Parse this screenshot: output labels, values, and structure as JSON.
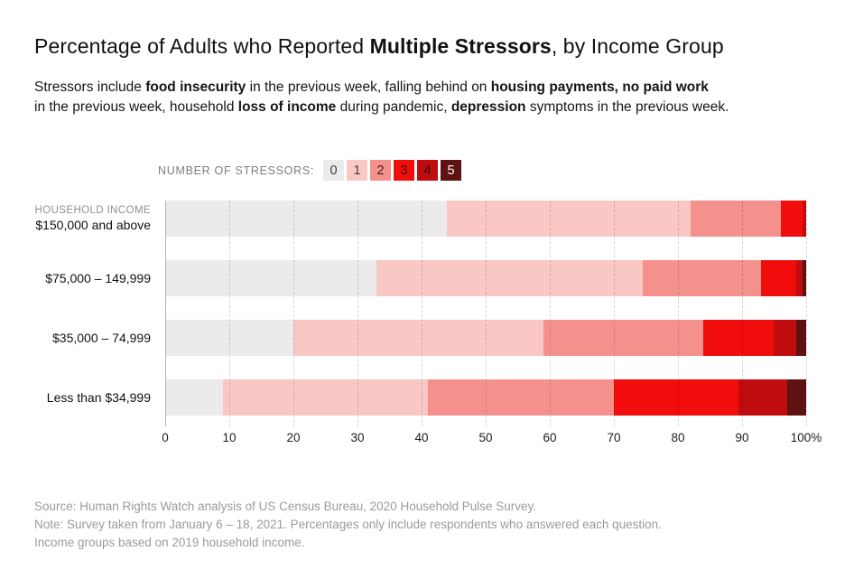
{
  "title": {
    "segments": [
      {
        "text": "Percentage of Adults who Reported ",
        "bold": false
      },
      {
        "text": "Multiple Stressors",
        "bold": true
      },
      {
        "text": ", by Income Group",
        "bold": false
      }
    ]
  },
  "subtitle": {
    "lines": [
      [
        {
          "text": "Stressors include ",
          "bold": false
        },
        {
          "text": "food insecurity",
          "bold": true
        },
        {
          "text": " in the previous week, falling behind on ",
          "bold": false
        },
        {
          "text": "housing payments,",
          "bold": true
        },
        {
          "text": " ",
          "bold": false
        },
        {
          "text": "no paid work",
          "bold": true
        }
      ],
      [
        {
          "text": "in the previous week, household ",
          "bold": false
        },
        {
          "text": "loss of income",
          "bold": true
        },
        {
          "text": " during pandemic, ",
          "bold": false
        },
        {
          "text": "depression",
          "bold": true
        },
        {
          "text": " symptoms in the previous week.",
          "bold": false
        }
      ]
    ]
  },
  "legend": {
    "label": "NUMBER OF STRESSORS:",
    "items": [
      {
        "value": "0",
        "color": "#ebebeb",
        "text_color": "#3d3d3d"
      },
      {
        "value": "1",
        "color": "#fac8c4",
        "text_color": "#3d3d3d"
      },
      {
        "value": "2",
        "color": "#f5918c",
        "text_color": "#42211f"
      },
      {
        "value": "3",
        "color": "#f20d0d",
        "text_color": "#4a0b0b"
      },
      {
        "value": "4",
        "color": "#c00c0f",
        "text_color": "#2b0606"
      },
      {
        "value": "5",
        "color": "#5e1211",
        "text_color": "#ffffff"
      }
    ]
  },
  "chart_data": {
    "type": "bar",
    "stacked": true,
    "orientation": "horizontal",
    "unit": "%",
    "title": "Percentage of Adults who Reported Multiple Stressors, by Income Group",
    "legend_title": "NUMBER OF STRESSORS:",
    "categories": [
      {
        "kicker": "HOUSEHOLD INCOME",
        "label": "$150,000 and above"
      },
      {
        "kicker": "",
        "label": "$75,000 – 149,999"
      },
      {
        "kicker": "",
        "label": "$35,000 – 74,999"
      },
      {
        "kicker": "",
        "label": "Less than $34,999"
      }
    ],
    "series": [
      {
        "name": "0",
        "color": "#ebebeb",
        "values": [
          44,
          33,
          20,
          9
        ]
      },
      {
        "name": "1",
        "color": "#fac8c4",
        "values": [
          38,
          41.5,
          39,
          32
        ]
      },
      {
        "name": "2",
        "color": "#f5918c",
        "values": [
          14,
          18.5,
          25,
          29
        ]
      },
      {
        "name": "3",
        "color": "#f20d0d",
        "values": [
          3.5,
          5.5,
          11,
          19.5
        ]
      },
      {
        "name": "4",
        "color": "#c00c0f",
        "values": [
          0.5,
          1,
          3.5,
          7.5
        ]
      },
      {
        "name": "5",
        "color": "#5e1211",
        "values": [
          0,
          0.5,
          1.5,
          3
        ]
      }
    ],
    "xlim": [
      0,
      100
    ],
    "xtick_values": [
      0,
      10,
      20,
      30,
      40,
      50,
      60,
      70,
      80,
      90,
      100
    ],
    "xtick_labels": [
      "0",
      "10",
      "20",
      "30",
      "40",
      "50",
      "60",
      "70",
      "80",
      "90",
      "100%"
    ],
    "grid": true,
    "legend_position": "top"
  },
  "footer": {
    "lines": [
      "Source: Human Rights Watch analysis of US Census Bureau, 2020 Household Pulse Survey.",
      "Note: Survey taken from January 6 – 18, 2021. Percentages only include respondents who answered each question.",
      "Income groups based on 2019 household income."
    ]
  }
}
